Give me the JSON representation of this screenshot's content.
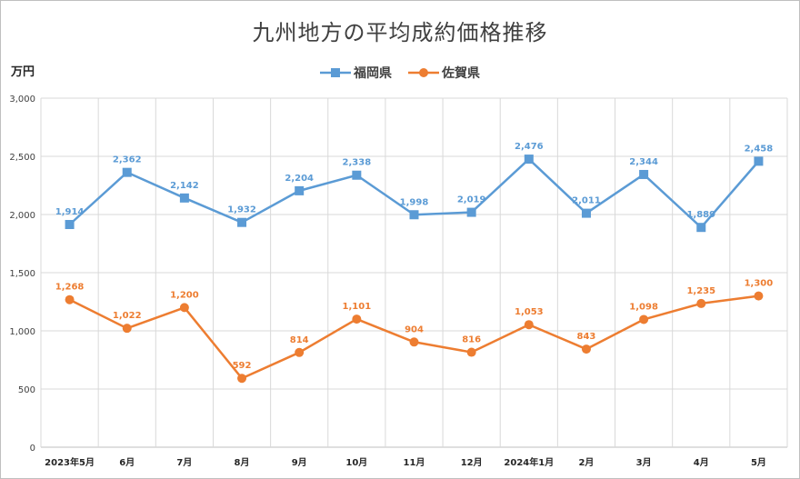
{
  "chart_data": {
    "type": "line",
    "title": "九州地方の平均成約価格推移",
    "ylabel": "万円",
    "ylim": [
      0,
      3000
    ],
    "yticks": [
      "0",
      "500",
      "1,000",
      "1,500",
      "2,000",
      "2,500",
      "3,000"
    ],
    "ytick_values": [
      0,
      500,
      1000,
      1500,
      2000,
      2500,
      3000
    ],
    "categories": [
      "2023年5月",
      "6月",
      "7月",
      "8月",
      "9月",
      "10月",
      "11月",
      "12月",
      "2024年1月",
      "2月",
      "3月",
      "4月",
      "5月"
    ],
    "grid": true,
    "legend_position": "top",
    "series": [
      {
        "name": "福岡県",
        "color": "#5b9bd5",
        "marker": "square",
        "values": [
          1914,
          2362,
          2142,
          1932,
          2204,
          2338,
          1998,
          2019,
          2476,
          2011,
          2344,
          1889,
          2458
        ],
        "labels": [
          "1,914",
          "2,362",
          "2,142",
          "1,932",
          "2,204",
          "2,338",
          "1,998",
          "2,019",
          "2,476",
          "2,011",
          "2,344",
          "1,889",
          "2,458"
        ]
      },
      {
        "name": "佐賀県",
        "color": "#ed7d31",
        "marker": "circle",
        "values": [
          1268,
          1022,
          1200,
          592,
          814,
          1101,
          904,
          816,
          1053,
          843,
          1098,
          1235,
          1300
        ],
        "labels": [
          "1,268",
          "1,022",
          "1,200",
          "592",
          "814",
          "1,101",
          "904",
          "816",
          "1,053",
          "843",
          "1,098",
          "1,235",
          "1,300"
        ]
      }
    ]
  }
}
